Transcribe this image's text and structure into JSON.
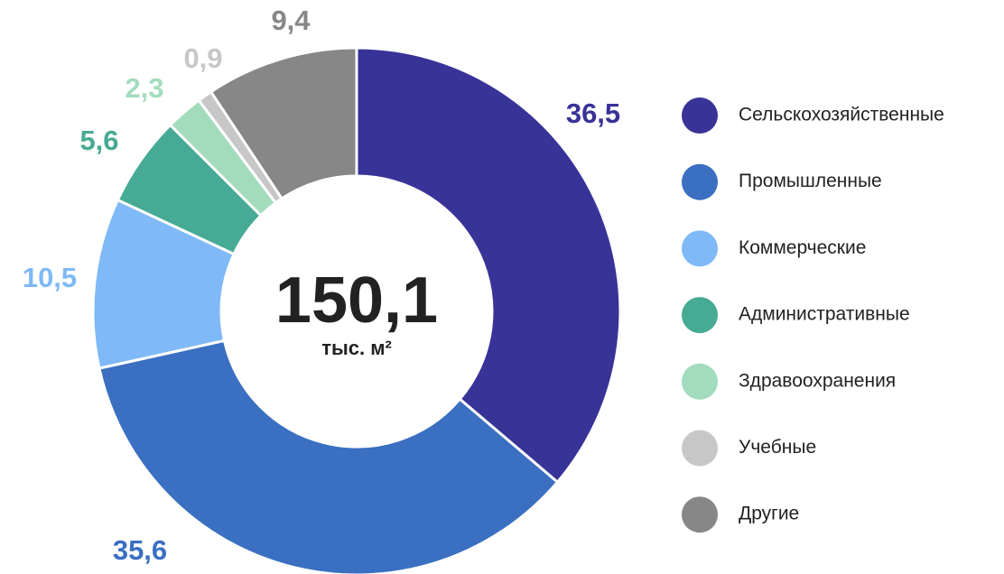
{
  "chart_data": {
    "type": "donut",
    "center_label": "150,1",
    "center_unit": "тыс. м²",
    "categories": [
      "Сельскохозяйственные",
      "Промышленные",
      "Коммерческие",
      "Административные",
      "Здравоохранения",
      "Учебные",
      "Другие"
    ],
    "values": [
      36.5,
      35.6,
      10.5,
      5.6,
      2.3,
      0.9,
      9.4
    ],
    "value_labels": [
      "36,5",
      "35,6",
      "10,5",
      "5,6",
      "2,3",
      "0,9",
      "9,4"
    ],
    "colors": [
      "#383397",
      "#3a6fc1",
      "#7fb9f7",
      "#46aa94",
      "#a3dcbd",
      "#c7c7c7",
      "#878787"
    ],
    "legend": "right"
  }
}
